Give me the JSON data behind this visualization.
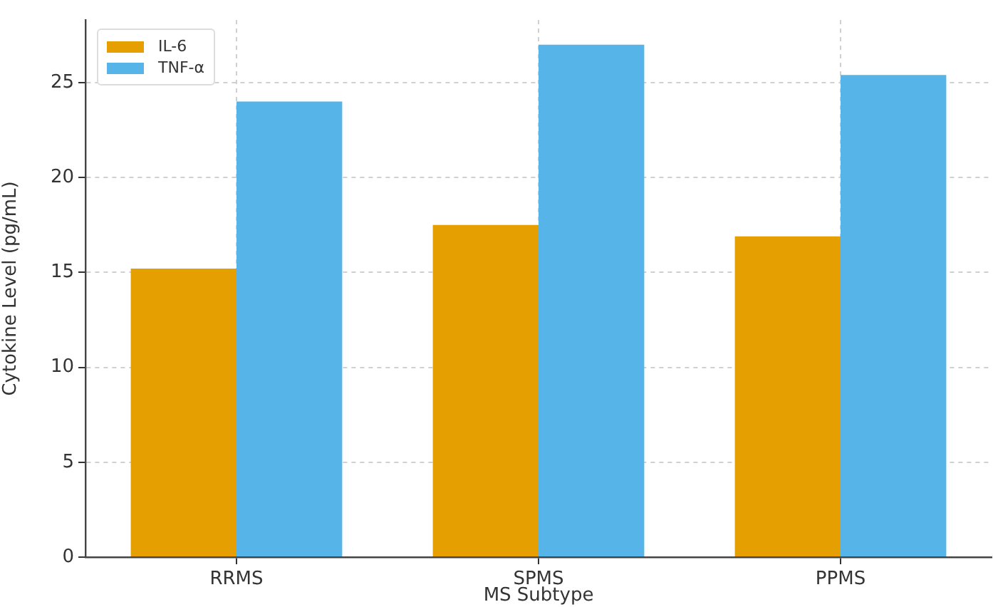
{
  "chart_data": {
    "type": "bar",
    "xlabel": "MS Subtype",
    "ylabel": "Cytokine Level (pg/mL)",
    "categories": [
      "RRMS",
      "SPMS",
      "PPMS"
    ],
    "series": [
      {
        "name": "IL-6",
        "color": "#e69f00",
        "values": [
          15.2,
          17.5,
          16.9
        ]
      },
      {
        "name": "TNF-α",
        "color": "#56b4e9",
        "values": [
          24.0,
          27.0,
          25.4
        ]
      }
    ],
    "ylim": [
      0,
      28.3
    ],
    "yticks": [
      0,
      5,
      10,
      15,
      20,
      25
    ],
    "grid": true,
    "legend": "top left"
  }
}
